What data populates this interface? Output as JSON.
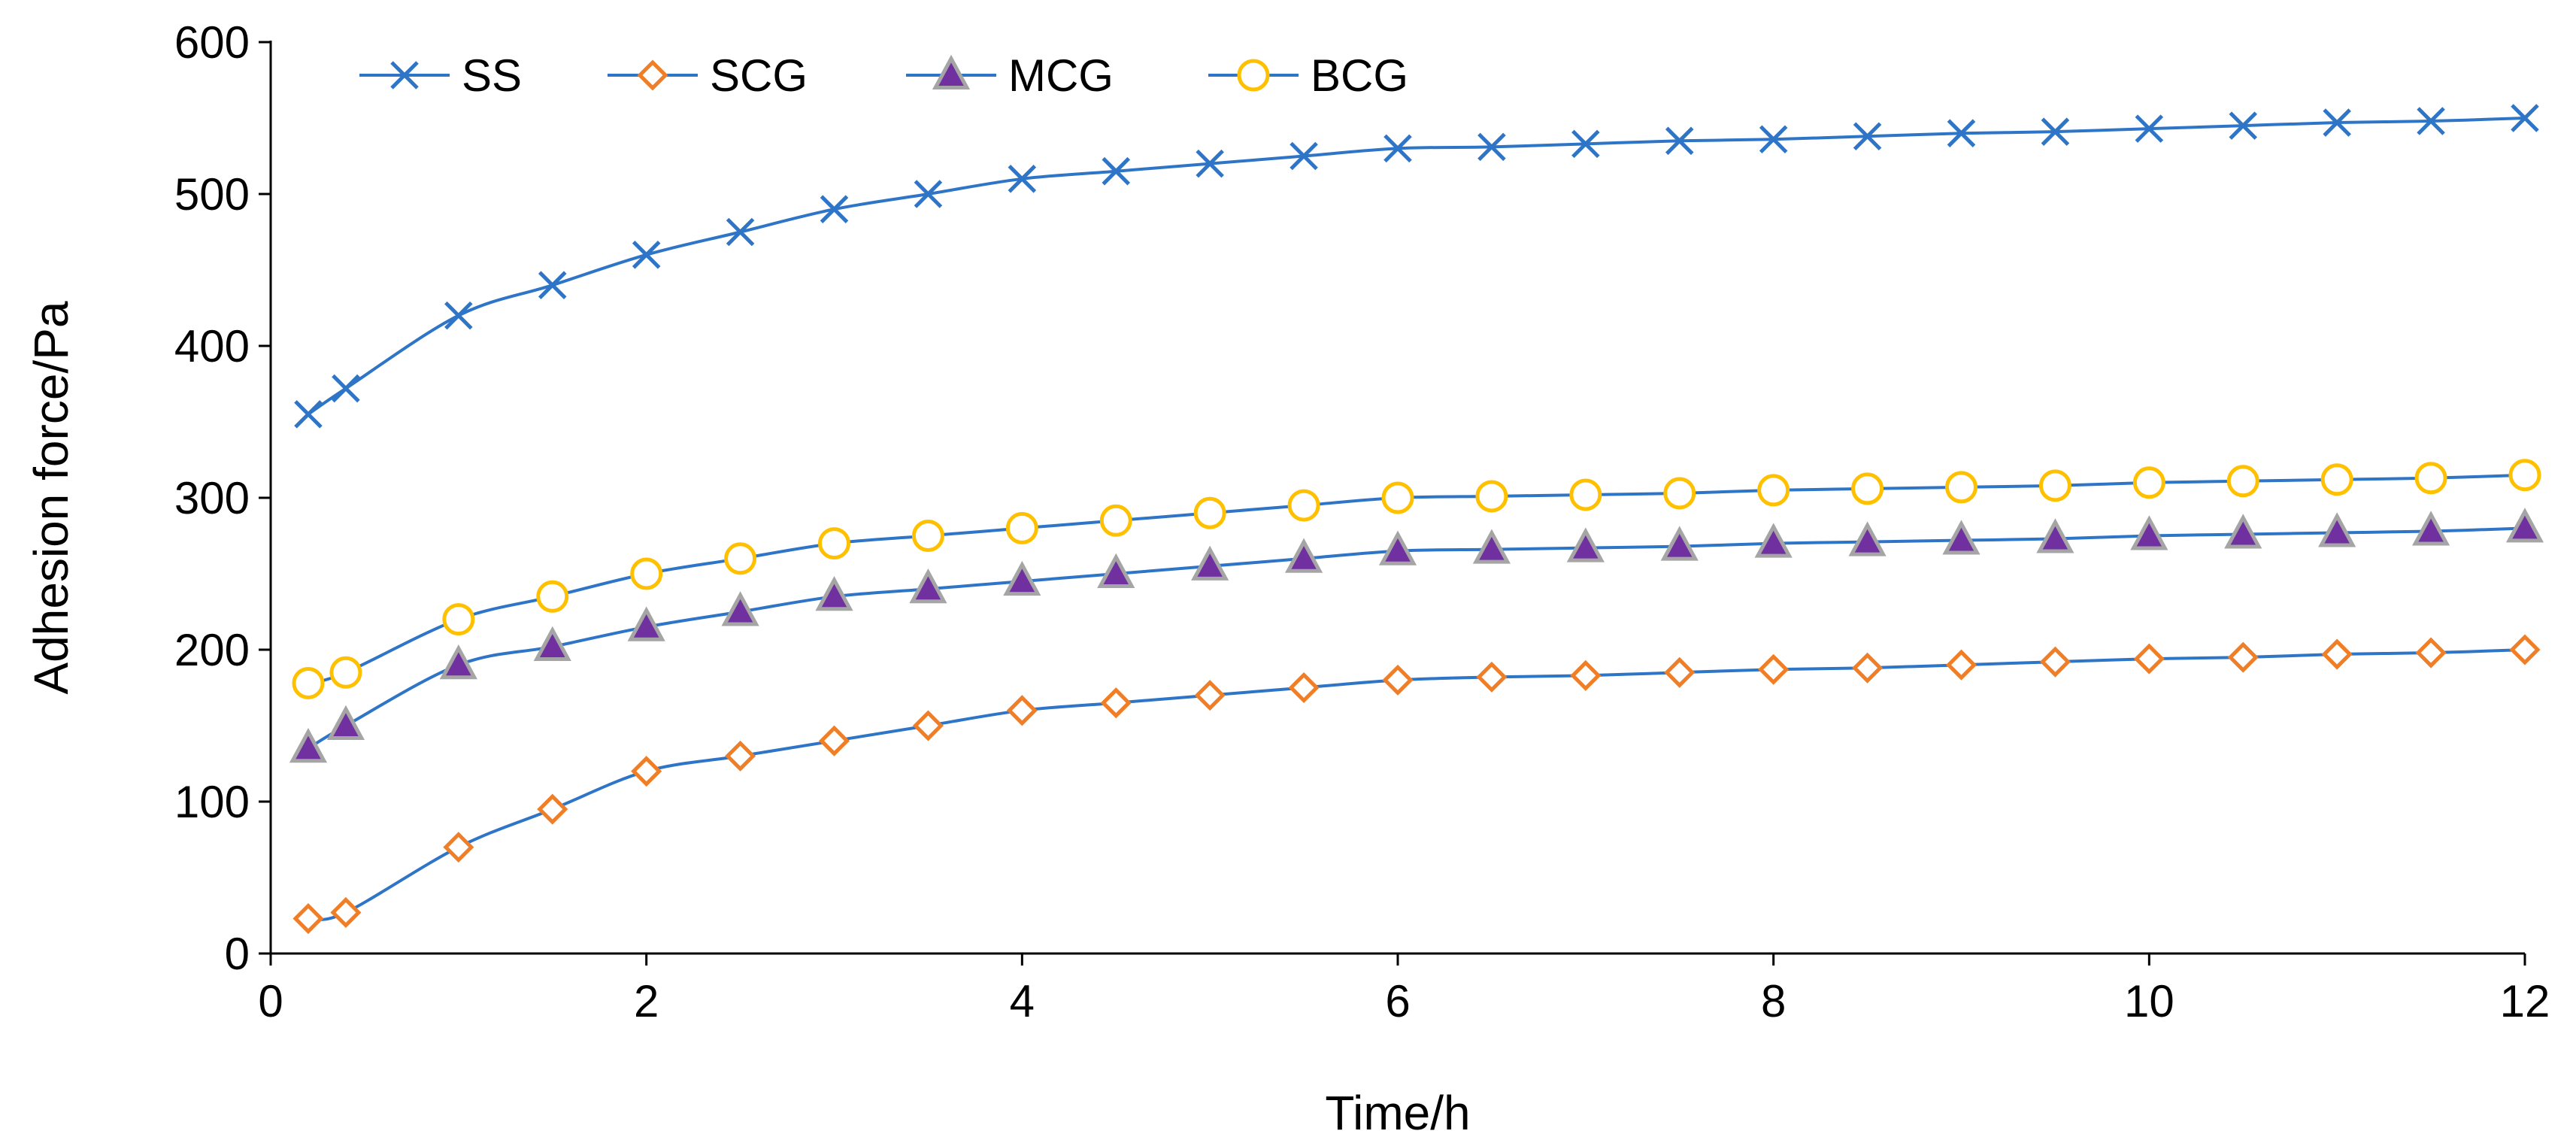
{
  "chart_data": {
    "type": "line",
    "xlabel": "Time/h",
    "ylabel": "Adhesion force/Pa",
    "xlim": [
      0,
      12
    ],
    "ylim": [
      0,
      600
    ],
    "xticks": [
      0,
      2,
      4,
      6,
      8,
      10,
      12
    ],
    "yticks": [
      0,
      100,
      200,
      300,
      400,
      500,
      600
    ],
    "xtick_labels": [
      "0",
      "2",
      "4",
      "6",
      "8",
      "10",
      "12"
    ],
    "ytick_labels": [
      "0",
      "100",
      "200",
      "300",
      "400",
      "500",
      "600"
    ],
    "grid": false,
    "legend_position": "top-left",
    "line_color": "#2E75C8",
    "x": [
      0.2,
      0.4,
      1,
      1.5,
      2,
      2.5,
      3,
      3.5,
      4,
      4.5,
      5,
      5.5,
      6,
      6.5,
      7,
      7.5,
      8,
      8.5,
      9,
      9.5,
      10,
      10.5,
      11,
      11.5,
      12
    ],
    "series": [
      {
        "name": "SS",
        "marker": "x",
        "marker_color": "#2E75C8",
        "values": [
          355,
          372,
          420,
          440,
          460,
          475,
          490,
          500,
          510,
          515,
          520,
          525,
          530,
          531,
          533,
          535,
          536,
          538,
          540,
          541,
          543,
          545,
          547,
          548,
          550
        ]
      },
      {
        "name": "SCG",
        "marker": "diamond",
        "marker_color": "#F07E26",
        "values": [
          23,
          27,
          70,
          95,
          120,
          130,
          140,
          150,
          160,
          165,
          170,
          175,
          180,
          182,
          183,
          185,
          187,
          188,
          190,
          192,
          194,
          195,
          197,
          198,
          200
        ]
      },
      {
        "name": "MCG",
        "marker": "triangle",
        "marker_color": "#7030A0",
        "marker_edge": "#A5A5A5",
        "values": [
          135,
          150,
          190,
          202,
          215,
          225,
          235,
          240,
          245,
          250,
          255,
          260,
          265,
          266,
          267,
          268,
          270,
          271,
          272,
          273,
          275,
          276,
          277,
          278,
          280
        ]
      },
      {
        "name": "BCG",
        "marker": "circle",
        "marker_color": "#FFC000",
        "values": [
          178,
          185,
          220,
          235,
          250,
          260,
          270,
          275,
          280,
          285,
          290,
          295,
          300,
          301,
          302,
          303,
          305,
          306,
          307,
          308,
          310,
          311,
          312,
          313,
          315
        ]
      }
    ]
  }
}
